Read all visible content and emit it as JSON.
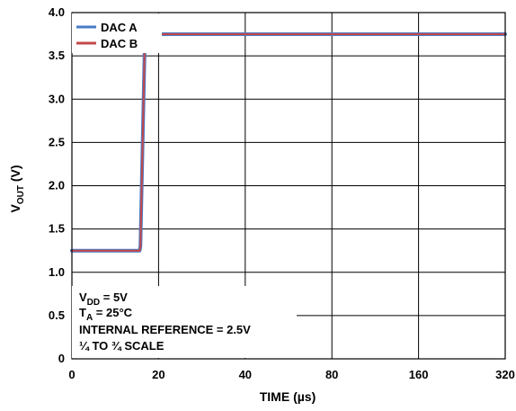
{
  "chart_data": {
    "type": "line",
    "xlabel": "TIME (µs)",
    "ylabel_main": "V",
    "ylabel_sub": "OUT",
    "ylabel_unit": " (V)",
    "xlim": [
      0,
      320
    ],
    "ylim": [
      0,
      4.0
    ],
    "x_tick_labels": [
      "0",
      "20",
      "40",
      "80",
      "160",
      "320"
    ],
    "y_ticks": [
      0,
      0.5,
      1.0,
      1.5,
      2.0,
      2.5,
      3.0,
      3.5,
      4.0
    ],
    "y_tick_labels": [
      "0",
      "0.5",
      "1.0",
      "1.5",
      "2.0",
      "2.5",
      "3.0",
      "3.5",
      "4.0"
    ],
    "grid": true,
    "legend_position": "top-left",
    "series": [
      {
        "name": "DAC A",
        "color": "#4a7bc4",
        "x": [
          0,
          50,
          50.6,
          53.8,
          54.4,
          56,
          100,
          150,
          200,
          250,
          320
        ],
        "y": [
          1.25,
          1.25,
          1.3,
          3.65,
          3.73,
          3.75,
          3.75,
          3.75,
          3.75,
          3.75,
          3.75
        ]
      },
      {
        "name": "DAC B",
        "color": "#c4484a",
        "x": [
          0,
          50,
          50.6,
          53.8,
          54.4,
          56,
          100,
          150,
          200,
          250,
          320
        ],
        "y": [
          1.25,
          1.25,
          1.3,
          3.65,
          3.73,
          3.75,
          3.75,
          3.75,
          3.75,
          3.75,
          3.75
        ]
      }
    ],
    "annotations": {
      "vdd_main": "V",
      "vdd_sub": "DD",
      "vdd_rest": " = 5V",
      "ta_main": "T",
      "ta_sub": "A",
      "ta_rest": " = 25°C",
      "line3": "INTERNAL REFERENCE = 2.5V",
      "line4": "¼ TO ¾ SCALE"
    }
  }
}
